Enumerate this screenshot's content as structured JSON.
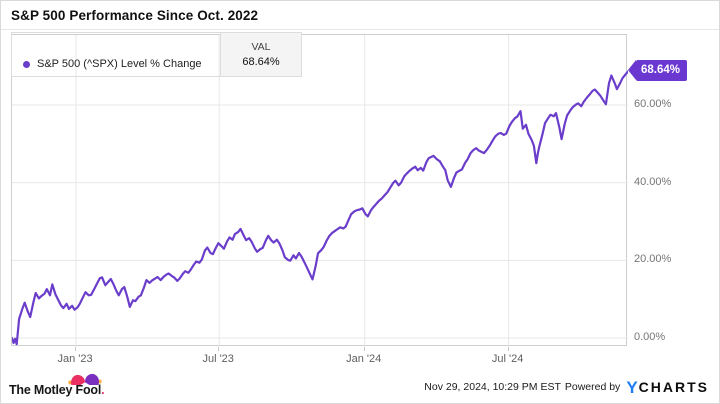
{
  "title": "S&P 500 Performance Since Oct. 2022",
  "legend": {
    "series_label": "S&P 500 (^SPX) Level % Change",
    "val_header": "VAL",
    "val_value": "68.64%"
  },
  "badge": {
    "label": "68.64%"
  },
  "footer": {
    "brand": "The Motley Fool",
    "brand_dot": ".",
    "timestamp": "Nov 29, 2024, 10:29 PM EST",
    "powered_by": "Powered by",
    "ycharts_y": "Y",
    "ycharts_rest": "CHARTS"
  },
  "colors": {
    "line": "#6b3dcb",
    "badge": "#6a38d0",
    "grid": "#e7e7e7",
    "plot_border": "#cfcfcf",
    "y_label": "#757575",
    "x_label": "#5f5f5f",
    "hat_left": "#ea2f63",
    "hat_right": "#7b2fbe",
    "hat_ball": "#fbaf3f",
    "ycharts_blue": "#1d7df2"
  },
  "chart_data": {
    "type": "line",
    "title": "S&P 500 Performance Since Oct. 2022",
    "series_name": "S&P 500 (^SPX) Level % Change",
    "unit": "percent change",
    "legend_position": "top-left",
    "grid": true,
    "x_axis": {
      "start_date": "Oct 12, 2022",
      "end_date": "Nov 29, 2024",
      "total_days": 779,
      "tick_labels": [
        "Jan '23",
        "Jul '23",
        "Jan '24",
        "Jul '24"
      ],
      "tick_days": [
        81,
        262,
        446,
        628
      ]
    },
    "y_axis": {
      "tick_labels": [
        "0.00%",
        "20.00%",
        "40.00%",
        "60.00%"
      ],
      "tick_values": [
        0,
        20,
        40,
        60
      ],
      "range": [
        -2.3,
        78.0
      ],
      "side": "right"
    },
    "last_value": 68.64,
    "points": [
      [
        0,
        0
      ],
      [
        2,
        -1.3
      ],
      [
        4,
        -0.2
      ],
      [
        6,
        -1.6
      ],
      [
        9,
        4.9
      ],
      [
        13,
        7.5
      ],
      [
        16,
        9.1
      ],
      [
        20,
        6.8
      ],
      [
        23,
        5.4
      ],
      [
        27,
        9.2
      ],
      [
        30,
        11.6
      ],
      [
        34,
        10.2
      ],
      [
        37,
        10.8
      ],
      [
        41,
        11.4
      ],
      [
        44,
        12.6
      ],
      [
        48,
        11.0
      ],
      [
        51,
        13.8
      ],
      [
        55,
        11.2
      ],
      [
        58,
        10.0
      ],
      [
        62,
        8.4
      ],
      [
        65,
        7.7
      ],
      [
        69,
        8.8
      ],
      [
        72,
        7.5
      ],
      [
        76,
        8.3
      ],
      [
        79,
        7.3
      ],
      [
        83,
        7.9
      ],
      [
        86,
        8.9
      ],
      [
        90,
        10.6
      ],
      [
        93,
        11.8
      ],
      [
        97,
        11.0
      ],
      [
        100,
        11.1
      ],
      [
        104,
        12.6
      ],
      [
        107,
        13.8
      ],
      [
        111,
        15.4
      ],
      [
        114,
        15.6
      ],
      [
        118,
        13.6
      ],
      [
        121,
        14.3
      ],
      [
        125,
        15.2
      ],
      [
        128,
        14.0
      ],
      [
        132,
        12.1
      ],
      [
        135,
        11.0
      ],
      [
        139,
        12.6
      ],
      [
        142,
        13.1
      ],
      [
        146,
        10.4
      ],
      [
        149,
        8.0
      ],
      [
        153,
        9.7
      ],
      [
        156,
        9.5
      ],
      [
        160,
        10.6
      ],
      [
        163,
        11.0
      ],
      [
        167,
        13.1
      ],
      [
        170,
        14.9
      ],
      [
        174,
        14.2
      ],
      [
        177,
        14.8
      ],
      [
        181,
        15.3
      ],
      [
        184,
        15.7
      ],
      [
        188,
        14.9
      ],
      [
        191,
        15.6
      ],
      [
        195,
        16.3
      ],
      [
        198,
        16.6
      ],
      [
        202,
        16.0
      ],
      [
        205,
        15.6
      ],
      [
        209,
        14.7
      ],
      [
        212,
        15.3
      ],
      [
        216,
        16.5
      ],
      [
        219,
        17.2
      ],
      [
        223,
        16.8
      ],
      [
        226,
        17.6
      ],
      [
        230,
        18.9
      ],
      [
        233,
        19.7
      ],
      [
        237,
        19.4
      ],
      [
        240,
        20.2
      ],
      [
        244,
        22.5
      ],
      [
        247,
        23.3
      ],
      [
        251,
        21.9
      ],
      [
        254,
        21.6
      ],
      [
        258,
        23.3
      ],
      [
        261,
        24.4
      ],
      [
        265,
        23.6
      ],
      [
        268,
        23.0
      ],
      [
        272,
        24.9
      ],
      [
        275,
        25.9
      ],
      [
        279,
        25.3
      ],
      [
        282,
        26.8
      ],
      [
        286,
        27.3
      ],
      [
        289,
        28.1
      ],
      [
        293,
        26.4
      ],
      [
        296,
        25.2
      ],
      [
        300,
        25.7
      ],
      [
        303,
        24.8
      ],
      [
        307,
        23.1
      ],
      [
        310,
        22.2
      ],
      [
        314,
        22.9
      ],
      [
        317,
        23.2
      ],
      [
        321,
        25.1
      ],
      [
        324,
        26.3
      ],
      [
        328,
        25.1
      ],
      [
        331,
        24.6
      ],
      [
        335,
        25.3
      ],
      [
        338,
        24.4
      ],
      [
        342,
        22.6
      ],
      [
        345,
        20.8
      ],
      [
        349,
        20.1
      ],
      [
        352,
        19.9
      ],
      [
        356,
        21.3
      ],
      [
        359,
        20.5
      ],
      [
        363,
        21.9
      ],
      [
        366,
        21.0
      ],
      [
        370,
        19.4
      ],
      [
        373,
        18.1
      ],
      [
        377,
        16.4
      ],
      [
        380,
        15.1
      ],
      [
        384,
        18.6
      ],
      [
        387,
        21.8
      ],
      [
        391,
        22.6
      ],
      [
        394,
        23.4
      ],
      [
        398,
        25.1
      ],
      [
        401,
        26.2
      ],
      [
        405,
        27.1
      ],
      [
        408,
        27.5
      ],
      [
        412,
        28.1
      ],
      [
        415,
        28.5
      ],
      [
        419,
        28.2
      ],
      [
        422,
        28.7
      ],
      [
        426,
        30.6
      ],
      [
        429,
        31.9
      ],
      [
        433,
        32.6
      ],
      [
        436,
        32.9
      ],
      [
        440,
        33.1
      ],
      [
        443,
        33.4
      ],
      [
        447,
        31.9
      ],
      [
        450,
        31.3
      ],
      [
        454,
        32.9
      ],
      [
        457,
        33.7
      ],
      [
        461,
        34.6
      ],
      [
        464,
        35.3
      ],
      [
        468,
        36.0
      ],
      [
        471,
        36.7
      ],
      [
        475,
        37.6
      ],
      [
        478,
        38.6
      ],
      [
        482,
        39.9
      ],
      [
        485,
        40.5
      ],
      [
        489,
        39.3
      ],
      [
        492,
        40.0
      ],
      [
        496,
        41.6
      ],
      [
        499,
        42.3
      ],
      [
        503,
        43.1
      ],
      [
        506,
        43.6
      ],
      [
        510,
        44.1
      ],
      [
        513,
        43.2
      ],
      [
        517,
        43.8
      ],
      [
        520,
        43.1
      ],
      [
        524,
        45.3
      ],
      [
        527,
        46.3
      ],
      [
        530,
        46.6
      ],
      [
        533,
        46.9
      ],
      [
        537,
        46.1
      ],
      [
        541,
        45.5
      ],
      [
        545,
        44.1
      ],
      [
        548,
        43.2
      ],
      [
        551,
        40.6
      ],
      [
        555,
        38.9
      ],
      [
        559,
        41.2
      ],
      [
        562,
        42.6
      ],
      [
        566,
        43.1
      ],
      [
        569,
        43.4
      ],
      [
        573,
        45.1
      ],
      [
        576,
        46.0
      ],
      [
        580,
        47.6
      ],
      [
        583,
        48.3
      ],
      [
        587,
        48.9
      ],
      [
        590,
        48.3
      ],
      [
        594,
        47.9
      ],
      [
        597,
        47.6
      ],
      [
        601,
        48.6
      ],
      [
        604,
        49.5
      ],
      [
        608,
        50.9
      ],
      [
        611,
        51.9
      ],
      [
        615,
        52.6
      ],
      [
        618,
        52.8
      ],
      [
        622,
        52.3
      ],
      [
        625,
        52.6
      ],
      [
        629,
        54.6
      ],
      [
        632,
        55.6
      ],
      [
        636,
        56.6
      ],
      [
        639,
        57.0
      ],
      [
        643,
        58.4
      ],
      [
        646,
        53.9
      ],
      [
        650,
        54.9
      ],
      [
        653,
        52.6
      ],
      [
        657,
        51.1
      ],
      [
        660,
        49.5
      ],
      [
        663,
        45.0
      ],
      [
        665,
        47.6
      ],
      [
        667,
        49.4
      ],
      [
        671,
        52.6
      ],
      [
        674,
        55.3
      ],
      [
        678,
        56.6
      ],
      [
        681,
        57.5
      ],
      [
        685,
        57.1
      ],
      [
        688,
        57.9
      ],
      [
        692,
        54.4
      ],
      [
        695,
        51.2
      ],
      [
        699,
        55.1
      ],
      [
        702,
        57.3
      ],
      [
        706,
        58.6
      ],
      [
        709,
        59.4
      ],
      [
        713,
        60.1
      ],
      [
        716,
        60.4
      ],
      [
        720,
        59.7
      ],
      [
        723,
        60.8
      ],
      [
        727,
        61.9
      ],
      [
        730,
        62.6
      ],
      [
        734,
        63.6
      ],
      [
        737,
        64.0
      ],
      [
        741,
        63.1
      ],
      [
        744,
        62.4
      ],
      [
        748,
        61.1
      ],
      [
        751,
        60.2
      ],
      [
        755,
        65.6
      ],
      [
        758,
        67.6
      ],
      [
        762,
        65.7
      ],
      [
        765,
        64.1
      ],
      [
        769,
        65.6
      ],
      [
        772,
        66.9
      ],
      [
        776,
        67.9
      ],
      [
        779,
        68.64
      ]
    ]
  }
}
